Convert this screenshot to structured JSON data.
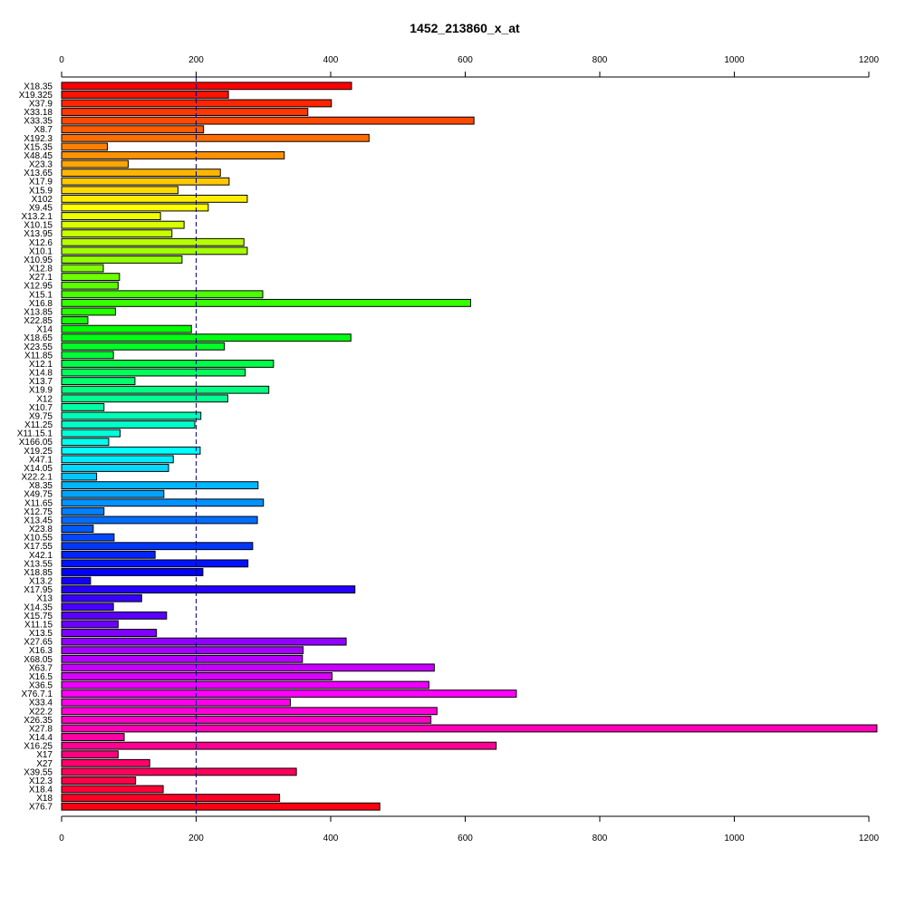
{
  "chart_data": {
    "type": "bar",
    "orientation": "horizontal",
    "title": "1452_213860_x_at",
    "xlabel": "",
    "ylabel": "",
    "xlim": [
      0,
      1200
    ],
    "x_ticks": [
      0,
      200,
      400,
      600,
      800,
      1000,
      1200
    ],
    "axes": [
      "top",
      "bottom"
    ],
    "reference_line": 200,
    "grid": false,
    "legend": "none",
    "color_scheme": "rainbow",
    "categories": [
      "X18.35",
      "X19.325",
      "X37.9",
      "X33.18",
      "X33.35",
      "X8.7",
      "X192.3",
      "X15.35",
      "X48.45",
      "X23.3",
      "X13.65",
      "X17.9",
      "X15.9",
      "X102",
      "X9.45",
      "X13.2.1",
      "X10.15",
      "X13.95",
      "X12.6",
      "X10.1",
      "X10.95",
      "X12.8",
      "X27.1",
      "X12.95",
      "X15.1",
      "X16.8",
      "X13.85",
      "X22.85",
      "X14",
      "X18.65",
      "X23.55",
      "X11.85",
      "X12.1",
      "X14.8",
      "X13.7",
      "X19.9",
      "X12",
      "X10.7",
      "X9.75",
      "X11.25",
      "X11.15.1",
      "X166.05",
      "X19.25",
      "X47.1",
      "X14.05",
      "X22.2.1",
      "X8.35",
      "X49.75",
      "X11.65",
      "X12.75",
      "X13.45",
      "X23.8",
      "X10.55",
      "X17.55",
      "X42.1",
      "X13.55",
      "X18.85",
      "X13.2",
      "X17.95",
      "X13",
      "X14.35",
      "X15.75",
      "X11.15",
      "X13.5",
      "X27.65",
      "X16.3",
      "X68.05",
      "X63.7",
      "X16.5",
      "X36.5",
      "X76.7.1",
      "X33.4",
      "X22.2",
      "X26.35",
      "X27.8",
      "X14.4",
      "X16.25",
      "X17",
      "X27",
      "X39.55",
      "X12.3",
      "X18.4",
      "X18",
      "X76.7"
    ],
    "values": [
      431,
      248,
      401,
      366,
      613,
      211,
      457,
      68,
      331,
      99,
      236,
      249,
      173,
      276,
      218,
      147,
      182,
      164,
      271,
      276,
      179,
      62,
      86,
      84,
      299,
      608,
      80,
      39,
      193,
      430,
      242,
      77,
      315,
      273,
      109,
      308,
      247,
      63,
      207,
      198,
      87,
      70,
      206,
      166,
      159,
      52,
      292,
      152,
      300,
      63,
      291,
      47,
      78,
      284,
      139,
      277,
      210,
      43,
      436,
      119,
      77,
      156,
      84,
      141,
      423,
      359,
      358,
      554,
      402,
      546,
      676,
      340,
      558,
      549,
      1212,
      93,
      646,
      84,
      131,
      349,
      110,
      151,
      324,
      473
    ]
  }
}
